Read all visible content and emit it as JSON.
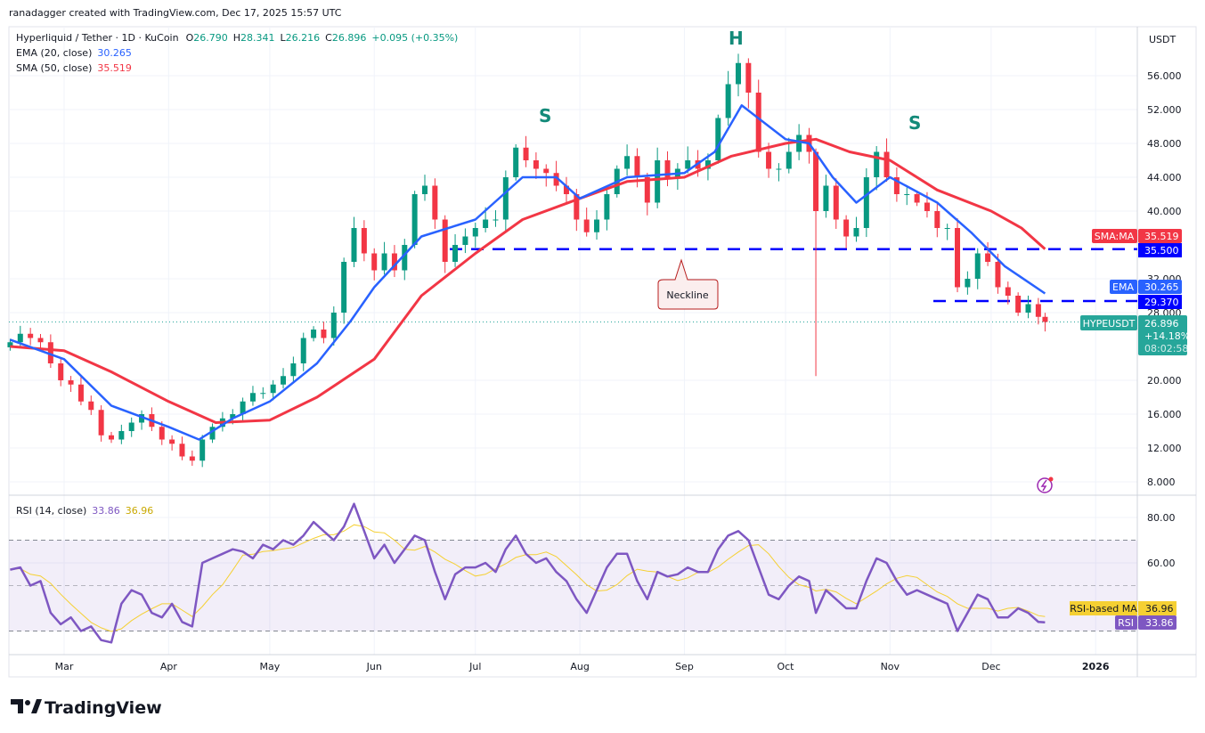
{
  "header": {
    "credit": "ranadagger created with TradingView.com, Dec 17, 2025 15:57 UTC"
  },
  "legend": {
    "symbol": "Hyperliquid / Tether · 1D · KuCoin",
    "o_label": "O",
    "o": "26.790",
    "h_label": "H",
    "h": "28.341",
    "l_label": "L",
    "l": "26.216",
    "c_label": "C",
    "c": "26.896",
    "change": "+0.095 (+0.35%)",
    "ema_label": "EMA (20, close)",
    "ema_value": "30.265",
    "sma_label": "SMA (50, close)",
    "sma_value": "35.519",
    "rsi_label": "RSI (14, close)",
    "rsi_value": "33.86",
    "rsi_ma_value": "36.96"
  },
  "colors": {
    "up": "#089981",
    "down": "#f23645",
    "ema": "#2962ff",
    "sma": "#f23645",
    "rsi": "#7e57c2",
    "rsi_ma": "#f5d033",
    "level_line": "#0000ff",
    "annotation": "#138a79"
  },
  "price_axis": {
    "currency": "USDT",
    "ticks": [
      "56.000",
      "52.000",
      "48.000",
      "44.000",
      "40.000",
      "32.000",
      "28.000",
      "20.000",
      "16.000",
      "12.000",
      "8.000"
    ],
    "tick_values": [
      56,
      52,
      48,
      44,
      40,
      32,
      28,
      20,
      16,
      12,
      8
    ]
  },
  "price_labels": {
    "sma_tag": "SMA:MA",
    "sma": "35.519",
    "level1": "35.500",
    "ema_tag": "EMA",
    "ema": "30.265",
    "level2": "29.370",
    "symbol_tag": "HYPEUSDT",
    "price": "26.896",
    "change_pct": "+14.18%",
    "countdown": "08:02:58"
  },
  "rsi_axis": {
    "ticks": [
      "80.00",
      "60.00"
    ],
    "tick_values": [
      80,
      60
    ],
    "ma_tag": "RSI-based MA",
    "ma": "36.96",
    "rsi_tag": "RSI",
    "rsi": "33.86"
  },
  "time_axis": {
    "labels": [
      "Mar",
      "Apr",
      "May",
      "Jun",
      "Jul",
      "Aug",
      "Sep",
      "Oct",
      "Nov",
      "Dec",
      "2026"
    ]
  },
  "annotations": {
    "left_shoulder": "S",
    "head": "H",
    "right_shoulder": "S",
    "neckline": "Neckline"
  },
  "footer": {
    "brand": "TradingView"
  },
  "chart_data": {
    "type": "candlestick",
    "title": "Hyperliquid / Tether · 1D · KuCoin",
    "ylim": [
      6,
      60
    ],
    "horizontal_levels": [
      35.5,
      29.37
    ],
    "rsi_bands": [
      30,
      50,
      70
    ],
    "wick_low": {
      "date": "Oct-10",
      "low": 20.5
    },
    "candles_date_close_rsi": [
      [
        "Feb-13",
        24.5,
        57
      ],
      [
        "Feb-16",
        25.5,
        58
      ],
      [
        "Feb-19",
        25,
        50
      ],
      [
        "Feb-22",
        24.5,
        52
      ],
      [
        "Feb-25",
        22,
        38
      ],
      [
        "Feb-28",
        20,
        33
      ],
      [
        "Mar-03",
        19.5,
        36
      ],
      [
        "Mar-06",
        17.5,
        30
      ],
      [
        "Mar-09",
        16.5,
        32
      ],
      [
        "Mar-12",
        13.5,
        26
      ],
      [
        "Mar-15",
        13,
        25
      ],
      [
        "Mar-18",
        14,
        42
      ],
      [
        "Mar-21",
        15,
        48
      ],
      [
        "Mar-24",
        16,
        46
      ],
      [
        "Mar-27",
        14.5,
        38
      ],
      [
        "Mar-30",
        13,
        36
      ],
      [
        "Apr-02",
        12.5,
        42
      ],
      [
        "Apr-05",
        11,
        34
      ],
      [
        "Apr-08",
        10.5,
        32
      ],
      [
        "Apr-11",
        13,
        60
      ],
      [
        "Apr-14",
        14.5,
        62
      ],
      [
        "Apr-17",
        15.5,
        64
      ],
      [
        "Apr-20",
        16,
        66
      ],
      [
        "Apr-23",
        17.5,
        65
      ],
      [
        "Apr-26",
        18.5,
        62
      ],
      [
        "Apr-29",
        18.5,
        68
      ],
      [
        "May-02",
        19.5,
        66
      ],
      [
        "May-05",
        20.5,
        70
      ],
      [
        "May-08",
        22,
        68
      ],
      [
        "May-11",
        25,
        72
      ],
      [
        "May-14",
        26,
        78
      ],
      [
        "May-17",
        25,
        74
      ],
      [
        "May-20",
        28,
        70
      ],
      [
        "May-23",
        34,
        76
      ],
      [
        "May-26",
        38,
        86
      ],
      [
        "May-29",
        35,
        74
      ],
      [
        "Jun-01",
        33,
        62
      ],
      [
        "Jun-04",
        35,
        68
      ],
      [
        "Jun-07",
        33,
        60
      ],
      [
        "Jun-10",
        36,
        66
      ],
      [
        "Jun-13",
        42,
        72
      ],
      [
        "Jun-16",
        43,
        70
      ],
      [
        "Jun-19",
        39,
        56
      ],
      [
        "Jun-22",
        34,
        44
      ],
      [
        "Jun-25",
        36,
        55
      ],
      [
        "Jun-28",
        37,
        58
      ],
      [
        "Jul-01",
        38,
        58
      ],
      [
        "Jul-04",
        39,
        60
      ],
      [
        "Jul-07",
        39,
        56
      ],
      [
        "Jul-10",
        44,
        66
      ],
      [
        "Jul-13",
        47.5,
        72
      ],
      [
        "Jul-16",
        46,
        64
      ],
      [
        "Jul-19",
        45,
        60
      ],
      [
        "Jul-22",
        44.5,
        62
      ],
      [
        "Jul-25",
        43,
        56
      ],
      [
        "Jul-28",
        42,
        52
      ],
      [
        "Jul-31",
        39,
        44
      ],
      [
        "Aug-03",
        37.5,
        38
      ],
      [
        "Aug-06",
        39,
        48
      ],
      [
        "Aug-09",
        42,
        58
      ],
      [
        "Aug-12",
        45,
        64
      ],
      [
        "Aug-15",
        46.5,
        64
      ],
      [
        "Aug-18",
        44,
        52
      ],
      [
        "Aug-21",
        41,
        44
      ],
      [
        "Aug-24",
        46,
        56
      ],
      [
        "Aug-27",
        44,
        54
      ],
      [
        "Aug-30",
        45,
        55
      ],
      [
        "Sep-02",
        46,
        58
      ],
      [
        "Sep-05",
        45,
        56
      ],
      [
        "Sep-08",
        46,
        56
      ],
      [
        "Sep-11",
        51,
        66
      ],
      [
        "Sep-14",
        55,
        72
      ],
      [
        "Sep-17",
        57.5,
        74
      ],
      [
        "Sep-20",
        54,
        70
      ],
      [
        "Sep-23",
        47,
        58
      ],
      [
        "Sep-26",
        45,
        46
      ],
      [
        "Sep-29",
        45,
        44
      ],
      [
        "Oct-02",
        47,
        50
      ],
      [
        "Oct-05",
        49,
        54
      ],
      [
        "Oct-08",
        47,
        52
      ],
      [
        "Oct-10",
        40,
        38
      ],
      [
        "Oct-13",
        43,
        48
      ],
      [
        "Oct-16",
        39,
        44
      ],
      [
        "Oct-19",
        37,
        40
      ],
      [
        "Oct-22",
        38,
        40
      ],
      [
        "Oct-25",
        44,
        52
      ],
      [
        "Oct-28",
        47,
        62
      ],
      [
        "Oct-31",
        44,
        60
      ],
      [
        "Nov-03",
        42,
        52
      ],
      [
        "Nov-06",
        42,
        46
      ],
      [
        "Nov-09",
        41,
        48
      ],
      [
        "Nov-12",
        40,
        46
      ],
      [
        "Nov-15",
        38,
        44
      ],
      [
        "Nov-18",
        38,
        42
      ],
      [
        "Nov-21",
        31,
        30
      ],
      [
        "Nov-24",
        32,
        38
      ],
      [
        "Nov-27",
        35,
        46
      ],
      [
        "Nov-30",
        34,
        44
      ],
      [
        "Dec-03",
        31,
        36
      ],
      [
        "Dec-06",
        30,
        36
      ],
      [
        "Dec-09",
        28,
        40
      ],
      [
        "Dec-12",
        29,
        38
      ],
      [
        "Dec-15",
        27.5,
        34
      ],
      [
        "Dec-17",
        26.9,
        33.86
      ]
    ],
    "ema20": [
      [
        "Feb-13",
        24.8
      ],
      [
        "Mar-01",
        22.5
      ],
      [
        "Mar-15",
        17
      ],
      [
        "Apr-01",
        14.5
      ],
      [
        "Apr-10",
        13
      ],
      [
        "Apr-20",
        15.5
      ],
      [
        "May-01",
        17.5
      ],
      [
        "May-15",
        22
      ],
      [
        "May-25",
        27
      ],
      [
        "Jun-01",
        31
      ],
      [
        "Jun-15",
        37
      ],
      [
        "Jul-01",
        39
      ],
      [
        "Jul-15",
        44
      ],
      [
        "Jul-25",
        44
      ],
      [
        "Aug-01",
        41.5
      ],
      [
        "Aug-15",
        44
      ],
      [
        "Sep-01",
        44.5
      ],
      [
        "Sep-10",
        47
      ],
      [
        "Sep-18",
        52.5
      ],
      [
        "Oct-01",
        48.5
      ],
      [
        "Oct-08",
        48
      ],
      [
        "Oct-15",
        44
      ],
      [
        "Oct-22",
        41
      ],
      [
        "Nov-01",
        44
      ],
      [
        "Nov-15",
        41
      ],
      [
        "Nov-25",
        37.5
      ],
      [
        "Dec-05",
        33.5
      ],
      [
        "Dec-17",
        30.265
      ]
    ],
    "sma50": [
      [
        "Feb-13",
        24
      ],
      [
        "Mar-01",
        23.5
      ],
      [
        "Mar-15",
        21
      ],
      [
        "Apr-01",
        17.5
      ],
      [
        "Apr-15",
        15
      ],
      [
        "May-01",
        15.3
      ],
      [
        "May-15",
        18
      ],
      [
        "Jun-01",
        22.5
      ],
      [
        "Jun-15",
        30
      ],
      [
        "Jul-01",
        35
      ],
      [
        "Jul-15",
        39
      ],
      [
        "Aug-01",
        41.5
      ],
      [
        "Aug-15",
        43.5
      ],
      [
        "Sep-01",
        44
      ],
      [
        "Sep-15",
        46.5
      ],
      [
        "Oct-01",
        48
      ],
      [
        "Oct-10",
        48.5
      ],
      [
        "Oct-20",
        47
      ],
      [
        "Nov-01",
        46
      ],
      [
        "Nov-15",
        42.5
      ],
      [
        "Dec-01",
        40
      ],
      [
        "Dec-10",
        38
      ],
      [
        "Dec-17",
        35.519
      ]
    ]
  }
}
